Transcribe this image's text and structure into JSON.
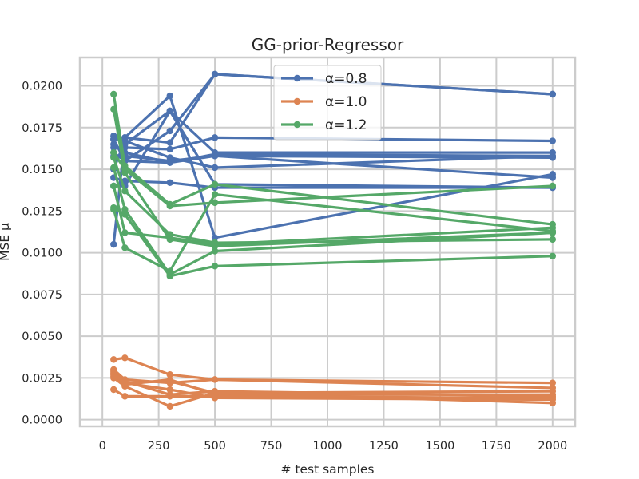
{
  "chart_data": {
    "type": "line",
    "title": "GG-prior-Regressor",
    "xlabel": "# test samples",
    "ylabel": "MSE μ",
    "xlim": [
      -100,
      2100
    ],
    "ylim": [
      -0.0004,
      0.0217
    ],
    "x_ticks": [
      0,
      250,
      500,
      750,
      1000,
      1250,
      1500,
      1750,
      2000
    ],
    "x_tick_labels": [
      "0",
      "250",
      "500",
      "750",
      "1000",
      "1250",
      "1500",
      "1750",
      "2000"
    ],
    "y_ticks": [
      0.0,
      0.0025,
      0.005,
      0.0075,
      0.01,
      0.0125,
      0.015,
      0.0175,
      0.02
    ],
    "y_tick_labels": [
      "0.0000",
      "0.0025",
      "0.0050",
      "0.0075",
      "0.0100",
      "0.0125",
      "0.0150",
      "0.0175",
      "0.0200"
    ],
    "grid": true,
    "legend_position": "top-center",
    "x": [
      50,
      100,
      300,
      500,
      2000
    ],
    "groups": [
      {
        "label": "α=0.8",
        "color": "#4c72b0",
        "lines": [
          [
            0.0105,
            0.0169,
            0.0194,
            0.0109,
            0.0147
          ],
          [
            0.0168,
            0.0169,
            0.0166,
            0.0207,
            0.0195
          ],
          [
            0.017,
            0.0165,
            0.0185,
            0.016,
            0.016
          ],
          [
            0.016,
            0.0155,
            0.0173,
            0.0207,
            0.0195
          ],
          [
            0.0163,
            0.0163,
            0.0162,
            0.0169,
            0.0167
          ],
          [
            0.0165,
            0.016,
            0.0154,
            0.0159,
            0.0158
          ],
          [
            0.0158,
            0.0158,
            0.0155,
            0.0158,
            0.0157
          ],
          [
            0.015,
            0.0167,
            0.0157,
            0.0151,
            0.0158
          ],
          [
            0.0145,
            0.0143,
            0.0142,
            0.0139,
            0.0139
          ],
          [
            0.014,
            0.014,
            0.0185,
            0.0141,
            0.0139
          ],
          [
            0.0168,
            0.0155,
            0.0154,
            0.0158,
            0.0145
          ]
        ]
      },
      {
        "label": "α=1.0",
        "color": "#dd8452",
        "lines": [
          [
            0.0036,
            0.0037,
            0.0027,
            0.0024,
            0.0022
          ],
          [
            0.003,
            0.0024,
            0.0022,
            0.0024,
            0.0019
          ],
          [
            0.0029,
            0.0022,
            0.0023,
            0.0016,
            0.0017
          ],
          [
            0.0027,
            0.0021,
            0.0024,
            0.0015,
            0.0015
          ],
          [
            0.0026,
            0.0023,
            0.0015,
            0.0017,
            0.0014
          ],
          [
            0.0025,
            0.002,
            0.0008,
            0.0016,
            0.001
          ],
          [
            0.0018,
            0.0014,
            0.0014,
            0.0014,
            0.0013
          ],
          [
            0.0028,
            0.0022,
            0.0018,
            0.0013,
            0.0012
          ]
        ]
      },
      {
        "label": "α=1.2",
        "color": "#55a868",
        "lines": [
          [
            0.0195,
            0.0152,
            0.0129,
            0.0141,
            0.0117
          ],
          [
            0.0186,
            0.0148,
            0.0108,
            0.0104,
            0.0112
          ],
          [
            0.016,
            0.015,
            0.0128,
            0.013,
            0.014
          ],
          [
            0.0157,
            0.0137,
            0.0111,
            0.0106,
            0.0108
          ],
          [
            0.0151,
            0.0126,
            0.0087,
            0.0101,
            0.0112
          ],
          [
            0.0127,
            0.0123,
            0.0086,
            0.0092,
            0.0098
          ],
          [
            0.0126,
            0.0103,
            0.0089,
            0.0135,
            0.0113
          ],
          [
            0.014,
            0.0112,
            0.0109,
            0.0105,
            0.0115
          ]
        ]
      }
    ]
  }
}
